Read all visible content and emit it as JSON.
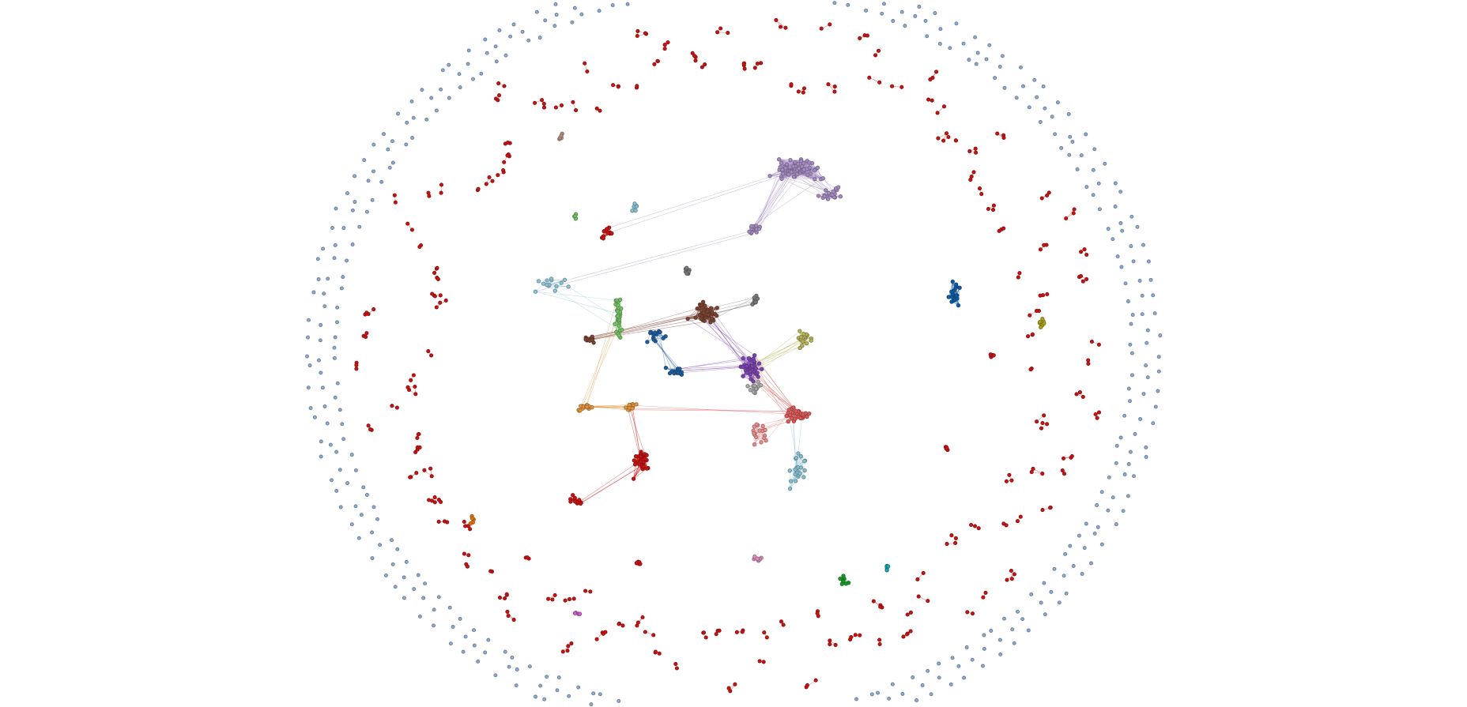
{
  "diagram": {
    "type": "network-graph",
    "labels": [],
    "colors": {
      "background": "#ffffff",
      "isolated_nodes": "#8eacd0",
      "small_components": "#c81414",
      "clusters": [
        {
          "name": "lavender",
          "color": "#a58cc1"
        },
        {
          "name": "brown",
          "color": "#7b4634"
        },
        {
          "name": "gray",
          "color": "#7a7a7a"
        },
        {
          "name": "purple",
          "color": "#7b45b2"
        },
        {
          "name": "olive",
          "color": "#b6b55a"
        },
        {
          "name": "blue",
          "color": "#1f5fa0"
        },
        {
          "name": "light-green",
          "color": "#76c266"
        },
        {
          "name": "light-blue",
          "color": "#8ec3d6"
        },
        {
          "name": "orange",
          "color": "#e3953f"
        },
        {
          "name": "red",
          "color": "#c81414"
        },
        {
          "name": "salmon",
          "color": "#dc5a5a"
        },
        {
          "name": "pink",
          "color": "#e88d8d"
        },
        {
          "name": "silver",
          "color": "#aaaaaa"
        },
        {
          "name": "light-cyan",
          "color": "#87bfd2"
        },
        {
          "name": "dark-blue",
          "color": "#0f5ca3"
        },
        {
          "name": "yellow-olive",
          "color": "#a9a21a"
        },
        {
          "name": "green",
          "color": "#1a9a28"
        },
        {
          "name": "cyan",
          "color": "#1aa6b5"
        },
        {
          "name": "rose",
          "color": "#de8fbd"
        },
        {
          "name": "dark-orange",
          "color": "#e0730f"
        },
        {
          "name": "magenta",
          "color": "#d15fc4"
        },
        {
          "name": "taupe",
          "color": "#b58b80"
        }
      ]
    }
  }
}
